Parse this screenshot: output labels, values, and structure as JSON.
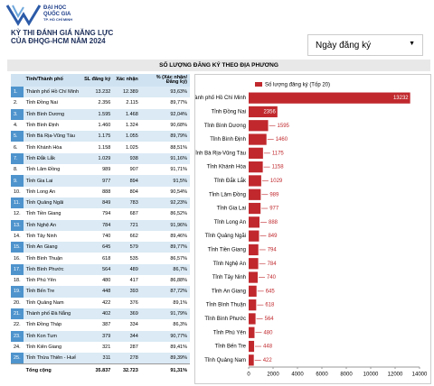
{
  "header": {
    "logo_lines": [
      "ĐẠI HỌC",
      "QUỐC GIA",
      "TP. HỒ CHÍ MINH"
    ],
    "title_lines": [
      "KỲ THI ĐÁNH GIÁ NĂNG LỰC",
      "CỦA ĐHQG-HCM NĂM 2024"
    ]
  },
  "dropdown": {
    "label": "Ngày đăng ký"
  },
  "section_title": "SỐ LƯỢNG ĐĂNG KÝ THEO ĐỊA PHƯƠNG",
  "table": {
    "columns": [
      "Tỉnh/Thành phố",
      "SL đăng ký",
      "Xác nhận",
      "% (Xác nhận/ Đăng ký)"
    ],
    "rows": [
      [
        "1.",
        "Thành phố Hồ Chí Minh",
        "13.232",
        "12.389",
        "93,63%"
      ],
      [
        "2.",
        "Tỉnh Đồng Nai",
        "2.356",
        "2.115",
        "89,77%"
      ],
      [
        "3.",
        "Tỉnh Bình Dương",
        "1.595",
        "1.468",
        "92,04%"
      ],
      [
        "4.",
        "Tỉnh Bình Định",
        "1.460",
        "1.324",
        "90,68%"
      ],
      [
        "5.",
        "Tỉnh Bà Rịa-Vũng Tàu",
        "1.175",
        "1.055",
        "89,79%"
      ],
      [
        "6.",
        "Tỉnh Khánh Hòa",
        "1.158",
        "1.025",
        "88,51%"
      ],
      [
        "7.",
        "Tỉnh Đắk Lắk",
        "1.029",
        "938",
        "91,16%"
      ],
      [
        "8.",
        "Tỉnh Lâm Đồng",
        "989",
        "907",
        "91,71%"
      ],
      [
        "9.",
        "Tỉnh Gia Lai",
        "977",
        "894",
        "91,5%"
      ],
      [
        "10.",
        "Tỉnh Long An",
        "888",
        "804",
        "90,54%"
      ],
      [
        "11.",
        "Tỉnh Quảng Ngãi",
        "849",
        "783",
        "92,23%"
      ],
      [
        "12.",
        "Tỉnh Tiền Giang",
        "794",
        "687",
        "86,52%"
      ],
      [
        "13.",
        "Tỉnh Nghệ An",
        "784",
        "721",
        "91,96%"
      ],
      [
        "14.",
        "Tỉnh Tây Ninh",
        "740",
        "662",
        "89,46%"
      ],
      [
        "15.",
        "Tỉnh An Giang",
        "645",
        "579",
        "89,77%"
      ],
      [
        "16.",
        "Tỉnh Bình Thuận",
        "618",
        "535",
        "86,57%"
      ],
      [
        "17.",
        "Tỉnh Bình Phước",
        "564",
        "489",
        "86,7%"
      ],
      [
        "18.",
        "Tỉnh Phú Yên",
        "480",
        "417",
        "86,88%"
      ],
      [
        "19.",
        "Tỉnh Bến Tre",
        "448",
        "393",
        "87,72%"
      ],
      [
        "20.",
        "Tỉnh Quảng Nam",
        "422",
        "376",
        "89,1%"
      ],
      [
        "21.",
        "Thành phố Đà Nẵng",
        "402",
        "369",
        "91,79%"
      ],
      [
        "22.",
        "Tỉnh Đồng Tháp",
        "387",
        "334",
        "86,3%"
      ],
      [
        "23.",
        "Tỉnh Kon Tum",
        "379",
        "344",
        "90,77%"
      ],
      [
        "24.",
        "Tỉnh Kiên Giang",
        "321",
        "287",
        "89,41%"
      ],
      [
        "25.",
        "Tỉnh Thừa Thiên - Huế",
        "311",
        "278",
        "89,39%"
      ]
    ],
    "total": [
      "Tổng cộng",
      "35.837",
      "32.723",
      "91,31%"
    ]
  },
  "chart_data": {
    "type": "bar",
    "orientation": "horizontal",
    "categories": [
      "Thành phố Hồ Chí Minh",
      "Tỉnh Đồng Nai",
      "Tỉnh Bình Dương",
      "Tỉnh Bình Định",
      "Tỉnh Bà Rịa-Vũng Tàu",
      "Tỉnh Khánh Hòa",
      "Tỉnh Đắk Lắk",
      "Tỉnh Lâm Đồng",
      "Tỉnh Gia Lai",
      "Tỉnh Long An",
      "Tỉnh Quảng Ngãi",
      "Tỉnh Tiền Giang",
      "Tỉnh Nghệ An",
      "Tỉnh Tây Ninh",
      "Tỉnh An Giang",
      "Tỉnh Bình Thuận",
      "Tỉnh Bình Phước",
      "Tỉnh Phú Yên",
      "Tỉnh Bến Tre",
      "Tỉnh Quảng Nam"
    ],
    "series": [
      {
        "name": "Số lượng đăng ký (Tốp 20)",
        "color": "#c0282d",
        "values": [
          13232,
          2356,
          1595,
          1460,
          1175,
          1158,
          1029,
          989,
          977,
          888,
          849,
          794,
          784,
          740,
          645,
          618,
          564,
          480,
          448,
          422
        ]
      }
    ],
    "xlim": [
      0,
      14000
    ],
    "xticks": [
      0,
      2000,
      4000,
      6000,
      8000,
      10000,
      12000,
      14000
    ],
    "legend": "top-left",
    "grid": false
  }
}
